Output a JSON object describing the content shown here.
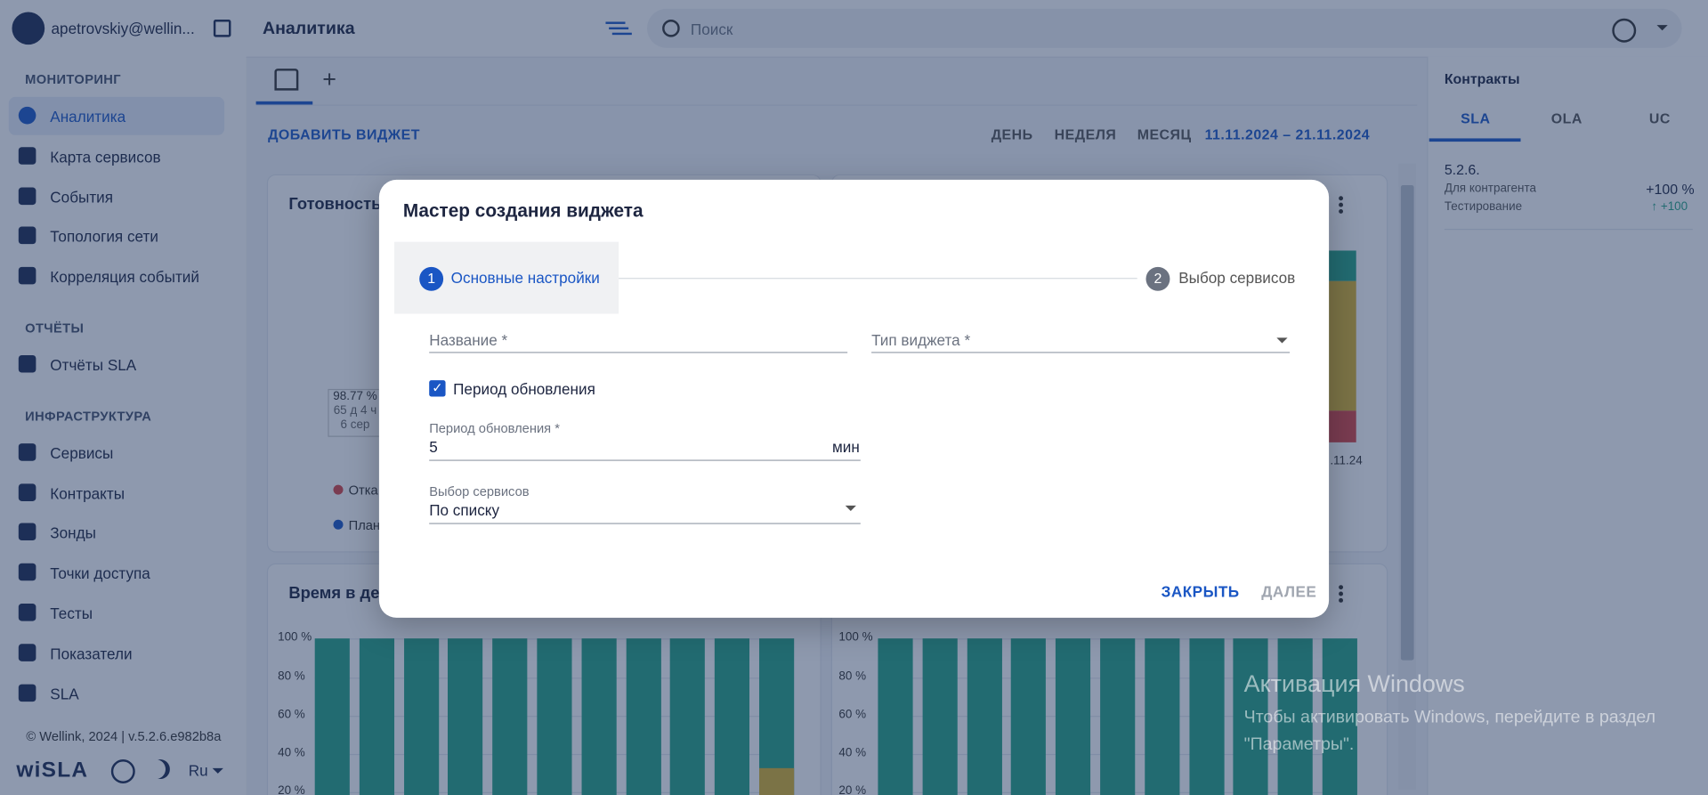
{
  "user": "apetrovskiy@wellin...",
  "nav": [
    {
      "section": "МОНИТОРИНГ",
      "items": [
        "Аналитика",
        "Карта сервисов",
        "События",
        "Топология сети",
        "Корреляция событий"
      ]
    },
    {
      "section": "ОТЧЁТЫ",
      "items": [
        "Отчёты SLA"
      ]
    },
    {
      "section": "ИНФРАСТРУКТУРА",
      "items": [
        "Сервисы",
        "Контракты",
        "Зонды",
        "Точки доступа",
        "Тесты",
        "Показатели",
        "SLA"
      ]
    }
  ],
  "footer": {
    "copyright": "© Wellink, 2024 | v.5.2.6.e982b8a",
    "logo": "wiSLA",
    "lang": "Ru"
  },
  "header": {
    "title": "Аналитика",
    "search_placeholder": "Поиск"
  },
  "toolbar": {
    "add_widget": "ДОБАВИТЬ ВИДЖЕТ",
    "periods": [
      "ДЕНЬ",
      "НЕДЕЛЯ",
      "МЕСЯЦ"
    ],
    "date_range": "11.11.2024 – 21.11.2024"
  },
  "widgets": {
    "readiness": {
      "title": "Готовность",
      "summary": [
        "98.77 %",
        "65 д 4 ч",
        "6 сер"
      ],
      "legend": [
        "Отка",
        "План"
      ]
    },
    "top_right": {
      "x_label": ".11.24"
    },
    "time": {
      "title": "Время в де",
      "yticks": [
        "100 %",
        "80 %",
        "60 %",
        "40 %",
        "20 %"
      ]
    },
    "bottom_right": {
      "yticks": [
        "100 %",
        "80 %",
        "60 %",
        "40 %",
        "20 %"
      ]
    }
  },
  "contracts": {
    "title": "Контракты",
    "tabs": [
      "SLA",
      "OLA",
      "UC"
    ],
    "item": {
      "name": "5.2.6.",
      "line1": "Для контрагента",
      "value1": "+100 %",
      "line2": "Тестирование",
      "value2": "+100"
    }
  },
  "dialog": {
    "title": "Мастер создания виджета",
    "steps": [
      {
        "number": "1",
        "label": "Основные настройки"
      },
      {
        "number": "2",
        "label": "Выбор сервисов"
      }
    ],
    "name_label": "Название *",
    "type_label": "Тип виджета *",
    "checkbox_label": "Период обновления",
    "period_label": "Период обновления *",
    "period_value": "5",
    "period_unit": "мин",
    "services_label": "Выбор сервисов",
    "services_value": "По списку",
    "close": "ЗАКРЫТЬ",
    "next": "ДАЛЕЕ"
  },
  "watermark": {
    "title": "Активация Windows",
    "text": "Чтобы активировать Windows, перейдите в раздел \"Параметры\"."
  }
}
